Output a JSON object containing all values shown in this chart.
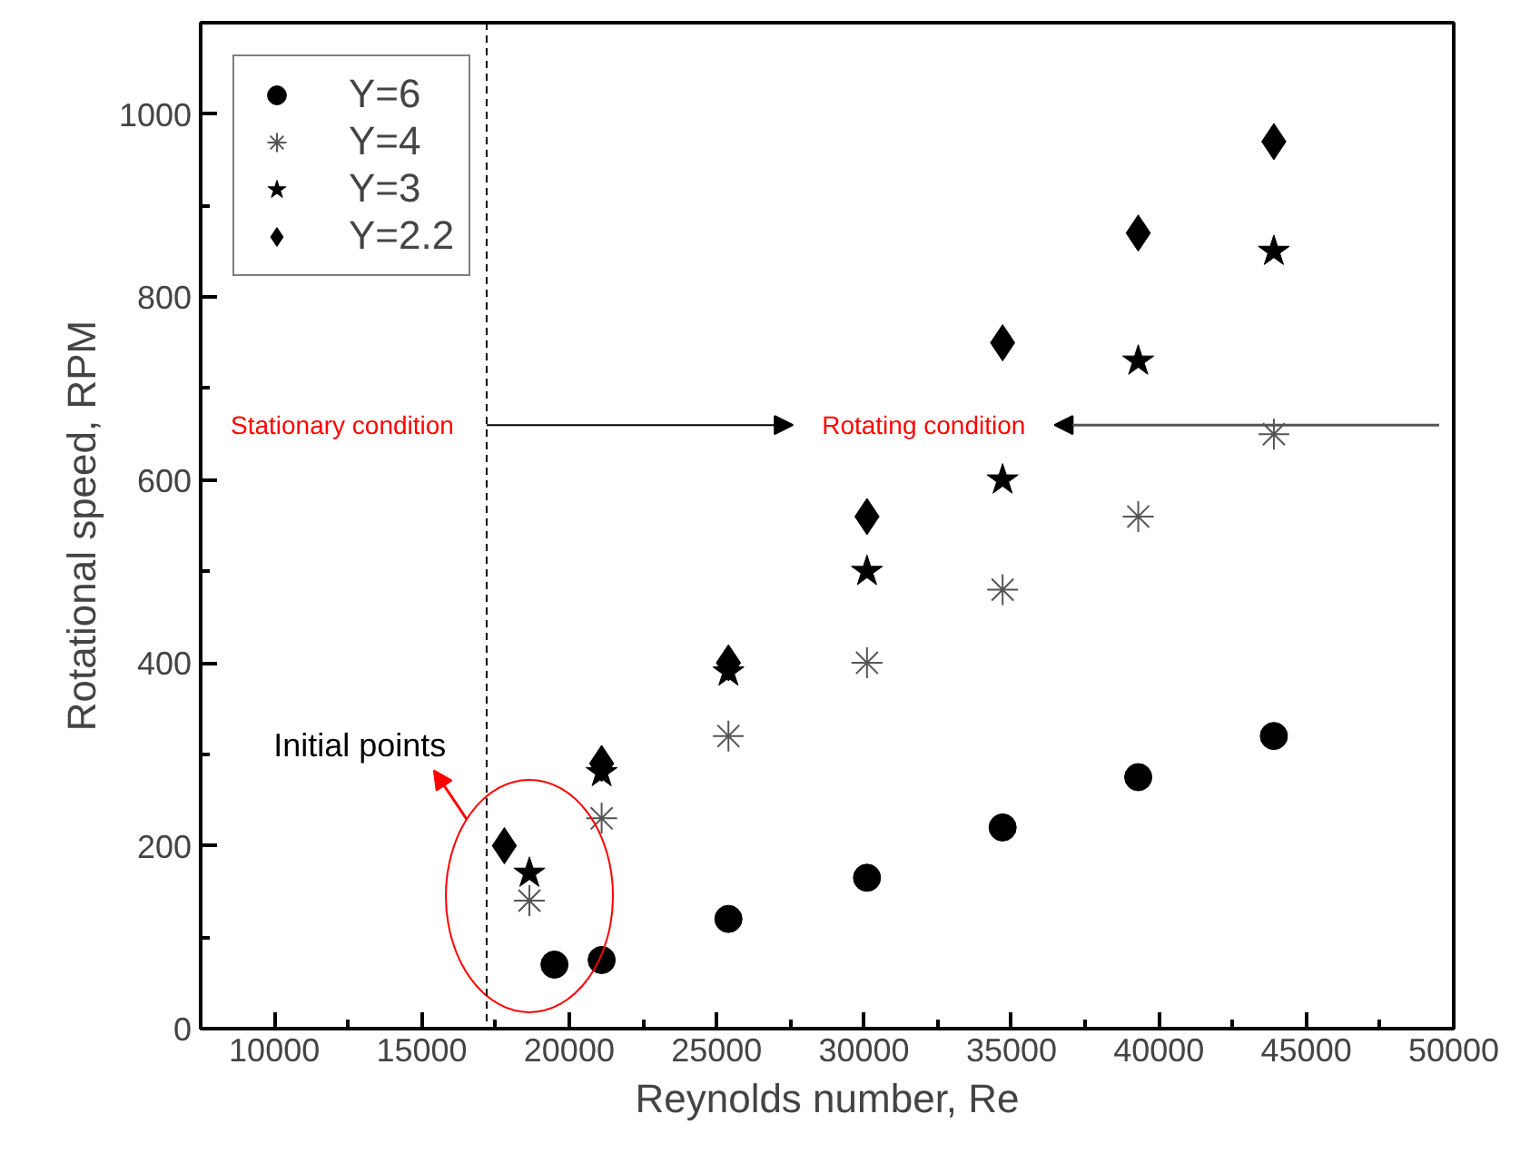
{
  "chart_data": {
    "type": "scatter",
    "xlabel": "Reynolds number, Re",
    "ylabel": "Rotational speed, RPM",
    "xlim": [
      7500,
      50000
    ],
    "ylim": [
      0,
      1100
    ],
    "xticks": [
      10000,
      15000,
      20000,
      25000,
      30000,
      35000,
      40000,
      45000,
      50000,
      {
        "value": 12500,
        "label": null
      },
      {
        "value": 17500,
        "label": null
      },
      {
        "value": 22500,
        "label": null
      },
      {
        "value": 27500,
        "label": null
      },
      {
        "value": 32500,
        "label": null
      },
      {
        "value": 37500,
        "label": null
      },
      {
        "value": 42500,
        "label": null
      },
      {
        "value": 47500,
        "label": null
      }
    ],
    "yticks": [
      0,
      200,
      400,
      600,
      800,
      1000,
      {
        "value": 100,
        "label": null
      },
      {
        "value": 300,
        "label": null
      },
      {
        "value": 500,
        "label": null
      },
      {
        "value": 700,
        "label": null
      },
      {
        "value": 900,
        "label": null
      }
    ],
    "grid": false,
    "legend": "top left",
    "series": [
      {
        "name": "Y=6",
        "color": "#000000",
        "marker": "circle",
        "x": [
          19500,
          21100,
          25400,
          30100,
          34700,
          39300,
          43900
        ],
        "values": [
          70,
          75,
          120,
          165,
          220,
          275,
          320
        ]
      },
      {
        "name": "Y=4",
        "color": "#555555",
        "marker": "cross",
        "x": [
          18650,
          21100,
          25400,
          30100,
          34700,
          39300,
          43900
        ],
        "values": [
          140,
          230,
          320,
          400,
          480,
          560,
          650
        ]
      },
      {
        "name": "Y=3",
        "color": "#000000",
        "marker": "star",
        "x": [
          18650,
          21100,
          25400,
          30100,
          34700,
          39300,
          43900
        ],
        "values": [
          170,
          280,
          390,
          500,
          600,
          730,
          850
        ]
      },
      {
        "name": "Y=2.2",
        "color": "#000000",
        "marker": "diamond",
        "x": [
          17800,
          21100,
          25400,
          30100,
          34700,
          39300,
          43900
        ],
        "values": [
          200,
          290,
          400,
          560,
          750,
          870,
          970
        ]
      }
    ],
    "ref_lines": [
      {
        "axis": "x",
        "value": 17200,
        "color": "#000000",
        "line_style": "dashed"
      }
    ],
    "annotations": [
      "Stationary condition",
      "Rotating condition",
      "Initial points"
    ]
  }
}
